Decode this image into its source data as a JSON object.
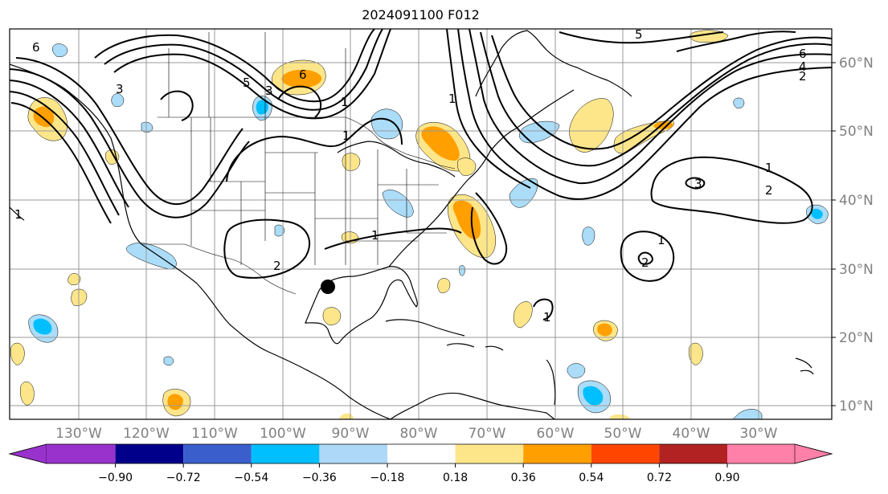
{
  "title": "2024091100 F012",
  "lon_labels": [
    "130°W",
    "120°W",
    "110°W",
    "100°W",
    "90°W",
    "80°W",
    "70°W",
    "60°W",
    "50°W",
    "40°W",
    "30°W"
  ],
  "lat_labels": [
    "60°N",
    "50°N",
    "40°N",
    "30°N",
    "20°N",
    "10°N"
  ],
  "contour_labels": [
    "1",
    "1",
    "1",
    "1",
    "1",
    "1",
    "2",
    "2",
    "2",
    "3",
    "3",
    "4",
    "5",
    "5",
    "6",
    "6",
    "6",
    "1",
    "3",
    "2",
    "1"
  ],
  "colorbar": {
    "colors": [
      "#9932cc",
      "#00008b",
      "#3a5fcd",
      "#00bfff",
      "#add8f8",
      "#ffffff",
      "#fde68a",
      "#ff9f00",
      "#ff4500",
      "#b22222",
      "#ff80a8"
    ],
    "tick_labels": [
      "−0.90",
      "−0.72",
      "−0.54",
      "−0.36",
      "−0.18",
      "0.18",
      "0.36",
      "0.54",
      "0.72",
      "0.90"
    ]
  },
  "marker": "storm-center-dot",
  "fill_colors": {
    "light_blue": "#abdcf8",
    "mid_blue": "#00bfff",
    "light_yellow": "#fde68a",
    "orange": "#ff9f00"
  }
}
